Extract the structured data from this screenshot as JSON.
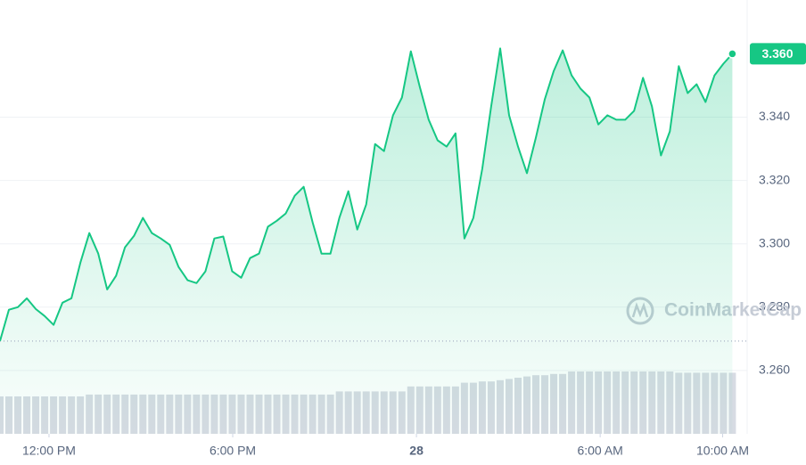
{
  "chart_data": {
    "type": "line",
    "x": [
      624,
      641.5,
      659,
      676.5,
      694,
      711.5,
      729,
      746.5,
      764,
      781.5,
      799,
      816.5,
      834,
      851.5,
      869,
      886.5,
      904,
      921.5,
      939,
      956.5,
      974,
      991.5,
      1009,
      1026.5,
      1044,
      1061.5,
      1079,
      1096.5,
      1114,
      1131.5,
      1149,
      1166.5,
      1184,
      1201.5,
      1219,
      1236.5,
      1254,
      1271.5,
      1289,
      1306.5,
      1324,
      1341.5,
      1359,
      1376.5,
      1394,
      1411.5,
      1429,
      1446.5,
      1464,
      1481.5,
      1499,
      1516.5,
      1534,
      1551.5,
      1569,
      1586.5,
      1604,
      1621.5,
      1639,
      1656.5,
      1674,
      1691.5,
      1709,
      1726.5,
      1744,
      1761.5,
      1779,
      1796.5,
      1814,
      1831.5,
      1849,
      1866.5,
      1884,
      1901.5,
      1919,
      1936.5,
      1954,
      1971.5,
      1989,
      2006.5,
      2024,
      2041.5,
      2059
    ],
    "series": [
      {
        "color": "#16c784",
        "values": [
          3.2693,
          3.2792,
          3.28,
          3.2828,
          3.2794,
          3.2772,
          3.2744,
          3.2814,
          3.2828,
          3.2941,
          3.3034,
          3.2969,
          3.2856,
          3.2899,
          3.2989,
          3.3025,
          3.3082,
          3.3034,
          3.3017,
          3.2997,
          3.2927,
          3.2885,
          3.2876,
          3.2913,
          3.3017,
          3.3023,
          3.2913,
          3.2893,
          3.2955,
          3.2969,
          3.3054,
          3.3073,
          3.3096,
          3.3152,
          3.318,
          3.3068,
          3.2969,
          3.2969,
          3.3082,
          3.3166,
          3.3045,
          3.3124,
          3.3315,
          3.3293,
          3.3406,
          3.3462,
          3.3608,
          3.3496,
          3.3392,
          3.3327,
          3.3307,
          3.3349,
          3.3017,
          3.3082,
          3.3237,
          3.3434,
          3.3617,
          3.3406,
          3.3307,
          3.3223,
          3.3335,
          3.3456,
          3.3546,
          3.3611,
          3.3532,
          3.349,
          3.3462,
          3.3377,
          3.3406,
          3.3392,
          3.3392,
          3.342,
          3.3524,
          3.3434,
          3.3279,
          3.3355,
          3.3561,
          3.3476,
          3.3504,
          3.3448,
          3.3532,
          3.3569,
          3.36
        ],
        "last_value_label": "3.360"
      }
    ],
    "volume": {
      "color": "#d7dbe3",
      "lim": [
        0,
        100
      ],
      "values": [
        30,
        30,
        30,
        30,
        30,
        30,
        30,
        30,
        30,
        30,
        31.5,
        31.5,
        31.5,
        31.5,
        31.5,
        31.5,
        31.5,
        31.5,
        31.5,
        31.5,
        31.5,
        31.5,
        31.5,
        31.5,
        31.5,
        31.5,
        31.5,
        31.5,
        31.5,
        31.5,
        31.5,
        31.5,
        31.5,
        31.5,
        31.5,
        31.5,
        31.5,
        31.5,
        34,
        34,
        34,
        34,
        34,
        34,
        34,
        34,
        38,
        38,
        38,
        38,
        38,
        38,
        41,
        41,
        42,
        42,
        43,
        44,
        45,
        46,
        47,
        47,
        48,
        48,
        50,
        50,
        50,
        50,
        50,
        50,
        50,
        50,
        50,
        50,
        50,
        50,
        49,
        49,
        49,
        49,
        49,
        49,
        49
      ]
    },
    "xlim": [
      624,
      2088
    ],
    "xticks": [
      {
        "value": 720,
        "label": "12:00 PM"
      },
      {
        "value": 1080,
        "label": "6:00 PM"
      },
      {
        "value": 1440,
        "label": "28"
      },
      {
        "value": 1800,
        "label": "6:00 AM"
      },
      {
        "value": 2040,
        "label": "10:00 AM"
      }
    ],
    "ylim": [
      3.24,
      3.377
    ],
    "yticks": [
      {
        "value": 3.26,
        "label": "3.260"
      },
      {
        "value": 3.28,
        "label": "3.280"
      },
      {
        "value": 3.3,
        "label": "3.300"
      },
      {
        "value": 3.32,
        "label": "3.320"
      },
      {
        "value": 3.34,
        "label": "3.340"
      }
    ],
    "grid": true,
    "watermark": "CoinMarketCap"
  }
}
